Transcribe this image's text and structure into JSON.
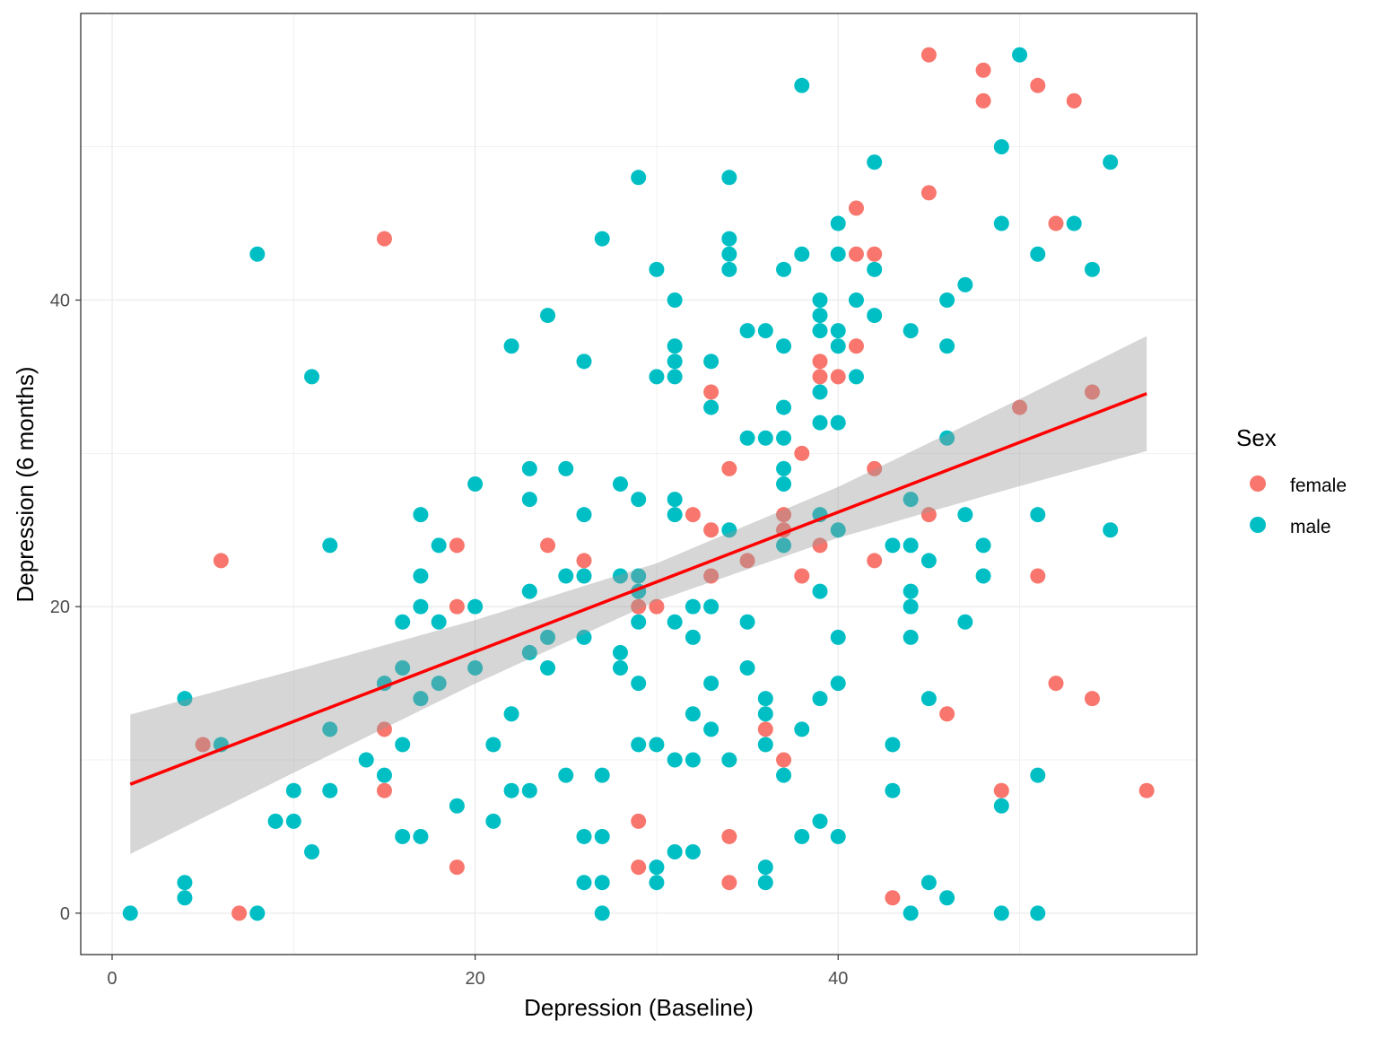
{
  "chart_data": {
    "type": "scatter",
    "title": "",
    "xlabel": "Depression (Baseline)",
    "ylabel": "Depression (6 months)",
    "xlim": [
      -1.73,
      59.76
    ],
    "ylim": [
      -2.7,
      58.7
    ],
    "x_ticks": [
      0,
      20,
      40
    ],
    "y_ticks": [
      0,
      20,
      40
    ],
    "x_tick_labels": [
      "0",
      "20",
      "40"
    ],
    "y_tick_labels": [
      "0",
      "20",
      "40"
    ],
    "grid": true,
    "legend": {
      "title": "Sex",
      "placement": "right",
      "entries": [
        "female",
        "male"
      ]
    },
    "series": [
      {
        "name": "female",
        "color": "#F8766D",
        "points": [
          [
            45,
            56
          ],
          [
            48,
            55
          ],
          [
            48,
            53
          ],
          [
            51,
            54
          ],
          [
            53,
            53
          ],
          [
            45,
            47
          ],
          [
            41,
            46
          ],
          [
            52,
            45
          ],
          [
            15,
            44
          ],
          [
            41,
            43
          ],
          [
            42,
            43
          ],
          [
            41,
            37
          ],
          [
            39,
            36
          ],
          [
            39,
            35
          ],
          [
            40,
            35
          ],
          [
            33,
            34
          ],
          [
            54,
            34
          ],
          [
            50,
            33
          ],
          [
            38,
            30
          ],
          [
            34,
            29
          ],
          [
            42,
            29
          ],
          [
            32,
            26
          ],
          [
            37,
            26
          ],
          [
            45,
            26
          ],
          [
            33,
            25
          ],
          [
            37,
            25
          ],
          [
            19,
            24
          ],
          [
            24,
            24
          ],
          [
            39,
            24
          ],
          [
            6,
            23
          ],
          [
            26,
            23
          ],
          [
            35,
            23
          ],
          [
            42,
            23
          ],
          [
            33,
            22
          ],
          [
            38,
            22
          ],
          [
            51,
            22
          ],
          [
            19,
            20
          ],
          [
            29,
            20
          ],
          [
            30,
            20
          ],
          [
            52,
            15
          ],
          [
            54,
            14
          ],
          [
            5,
            11
          ],
          [
            15,
            12
          ],
          [
            36,
            12
          ],
          [
            46,
            13
          ],
          [
            37,
            10
          ],
          [
            15,
            8
          ],
          [
            49,
            8
          ],
          [
            57,
            8
          ],
          [
            29,
            6
          ],
          [
            34,
            5
          ],
          [
            19,
            3
          ],
          [
            29,
            3
          ],
          [
            34,
            2
          ],
          [
            7,
            0
          ],
          [
            43,
            1
          ]
        ]
      },
      {
        "name": "male",
        "color": "#00BFC4",
        "points": [
          [
            50,
            56
          ],
          [
            38,
            54
          ],
          [
            49,
            50
          ],
          [
            42,
            49
          ],
          [
            55,
            49
          ],
          [
            29,
            48
          ],
          [
            34,
            48
          ],
          [
            40,
            45
          ],
          [
            49,
            45
          ],
          [
            53,
            45
          ],
          [
            27,
            44
          ],
          [
            34,
            44
          ],
          [
            8,
            43
          ],
          [
            34,
            43
          ],
          [
            38,
            43
          ],
          [
            40,
            43
          ],
          [
            51,
            43
          ],
          [
            30,
            42
          ],
          [
            34,
            42
          ],
          [
            37,
            42
          ],
          [
            42,
            42
          ],
          [
            54,
            42
          ],
          [
            47,
            41
          ],
          [
            31,
            40
          ],
          [
            39,
            40
          ],
          [
            41,
            40
          ],
          [
            46,
            40
          ],
          [
            24,
            39
          ],
          [
            39,
            39
          ],
          [
            42,
            39
          ],
          [
            35,
            38
          ],
          [
            36,
            38
          ],
          [
            39,
            38
          ],
          [
            40,
            38
          ],
          [
            44,
            38
          ],
          [
            22,
            37
          ],
          [
            31,
            37
          ],
          [
            37,
            37
          ],
          [
            40,
            37
          ],
          [
            46,
            37
          ],
          [
            26,
            36
          ],
          [
            31,
            36
          ],
          [
            33,
            36
          ],
          [
            11,
            35
          ],
          [
            30,
            35
          ],
          [
            31,
            35
          ],
          [
            41,
            35
          ],
          [
            39,
            34
          ],
          [
            33,
            33
          ],
          [
            37,
            33
          ],
          [
            39,
            32
          ],
          [
            40,
            32
          ],
          [
            35,
            31
          ],
          [
            36,
            31
          ],
          [
            37,
            31
          ],
          [
            46,
            31
          ],
          [
            23,
            29
          ],
          [
            25,
            29
          ],
          [
            37,
            29
          ],
          [
            20,
            28
          ],
          [
            28,
            28
          ],
          [
            37,
            28
          ],
          [
            23,
            27
          ],
          [
            29,
            27
          ],
          [
            31,
            27
          ],
          [
            44,
            27
          ],
          [
            17,
            26
          ],
          [
            26,
            26
          ],
          [
            31,
            26
          ],
          [
            39,
            26
          ],
          [
            47,
            26
          ],
          [
            51,
            26
          ],
          [
            34,
            25
          ],
          [
            40,
            25
          ],
          [
            55,
            25
          ],
          [
            12,
            24
          ],
          [
            18,
            24
          ],
          [
            37,
            24
          ],
          [
            43,
            24
          ],
          [
            44,
            24
          ],
          [
            48,
            24
          ],
          [
            45,
            23
          ],
          [
            17,
            22
          ],
          [
            25,
            22
          ],
          [
            26,
            22
          ],
          [
            28,
            22
          ],
          [
            29,
            22
          ],
          [
            48,
            22
          ],
          [
            23,
            21
          ],
          [
            29,
            21
          ],
          [
            39,
            21
          ],
          [
            44,
            21
          ],
          [
            17,
            20
          ],
          [
            20,
            20
          ],
          [
            32,
            20
          ],
          [
            33,
            20
          ],
          [
            44,
            20
          ],
          [
            16,
            19
          ],
          [
            18,
            19
          ],
          [
            29,
            19
          ],
          [
            31,
            19
          ],
          [
            35,
            19
          ],
          [
            47,
            19
          ],
          [
            24,
            18
          ],
          [
            26,
            18
          ],
          [
            32,
            18
          ],
          [
            40,
            18
          ],
          [
            44,
            18
          ],
          [
            23,
            17
          ],
          [
            28,
            17
          ],
          [
            16,
            16
          ],
          [
            20,
            16
          ],
          [
            24,
            16
          ],
          [
            28,
            16
          ],
          [
            35,
            16
          ],
          [
            15,
            15
          ],
          [
            18,
            15
          ],
          [
            29,
            15
          ],
          [
            33,
            15
          ],
          [
            40,
            15
          ],
          [
            4,
            14
          ],
          [
            17,
            14
          ],
          [
            36,
            14
          ],
          [
            39,
            14
          ],
          [
            45,
            14
          ],
          [
            22,
            13
          ],
          [
            32,
            13
          ],
          [
            36,
            13
          ],
          [
            12,
            12
          ],
          [
            33,
            12
          ],
          [
            38,
            12
          ],
          [
            6,
            11
          ],
          [
            16,
            11
          ],
          [
            21,
            11
          ],
          [
            29,
            11
          ],
          [
            30,
            11
          ],
          [
            36,
            11
          ],
          [
            43,
            11
          ],
          [
            14,
            10
          ],
          [
            31,
            10
          ],
          [
            32,
            10
          ],
          [
            34,
            10
          ],
          [
            15,
            9
          ],
          [
            25,
            9
          ],
          [
            27,
            9
          ],
          [
            37,
            9
          ],
          [
            51,
            9
          ],
          [
            10,
            8
          ],
          [
            12,
            8
          ],
          [
            22,
            8
          ],
          [
            23,
            8
          ],
          [
            43,
            8
          ],
          [
            19,
            7
          ],
          [
            49,
            7
          ],
          [
            9,
            6
          ],
          [
            10,
            6
          ],
          [
            21,
            6
          ],
          [
            39,
            6
          ],
          [
            16,
            5
          ],
          [
            17,
            5
          ],
          [
            26,
            5
          ],
          [
            27,
            5
          ],
          [
            38,
            5
          ],
          [
            40,
            5
          ],
          [
            11,
            4
          ],
          [
            31,
            4
          ],
          [
            32,
            4
          ],
          [
            30,
            3
          ],
          [
            36,
            3
          ],
          [
            4,
            2
          ],
          [
            26,
            2
          ],
          [
            27,
            2
          ],
          [
            30,
            2
          ],
          [
            36,
            2
          ],
          [
            45,
            2
          ],
          [
            4,
            1
          ],
          [
            46,
            1
          ],
          [
            1,
            0
          ],
          [
            8,
            0
          ],
          [
            27,
            0
          ],
          [
            44,
            0
          ],
          [
            49,
            0
          ],
          [
            51,
            0
          ]
        ]
      }
    ],
    "fit": {
      "method": "linear",
      "color": "#FF0000",
      "ribbon_color": "#999999",
      "x": [
        1,
        10,
        20,
        30,
        40,
        50,
        57
      ],
      "y": [
        8.41,
        12.5,
        17.05,
        21.6,
        26.15,
        30.7,
        33.9
      ],
      "lower": [
        3.86,
        9.16,
        14.98,
        20.37,
        24.49,
        27.86,
        30.15
      ],
      "upper": [
        12.96,
        15.84,
        19.12,
        22.83,
        27.81,
        33.54,
        37.65
      ]
    }
  }
}
